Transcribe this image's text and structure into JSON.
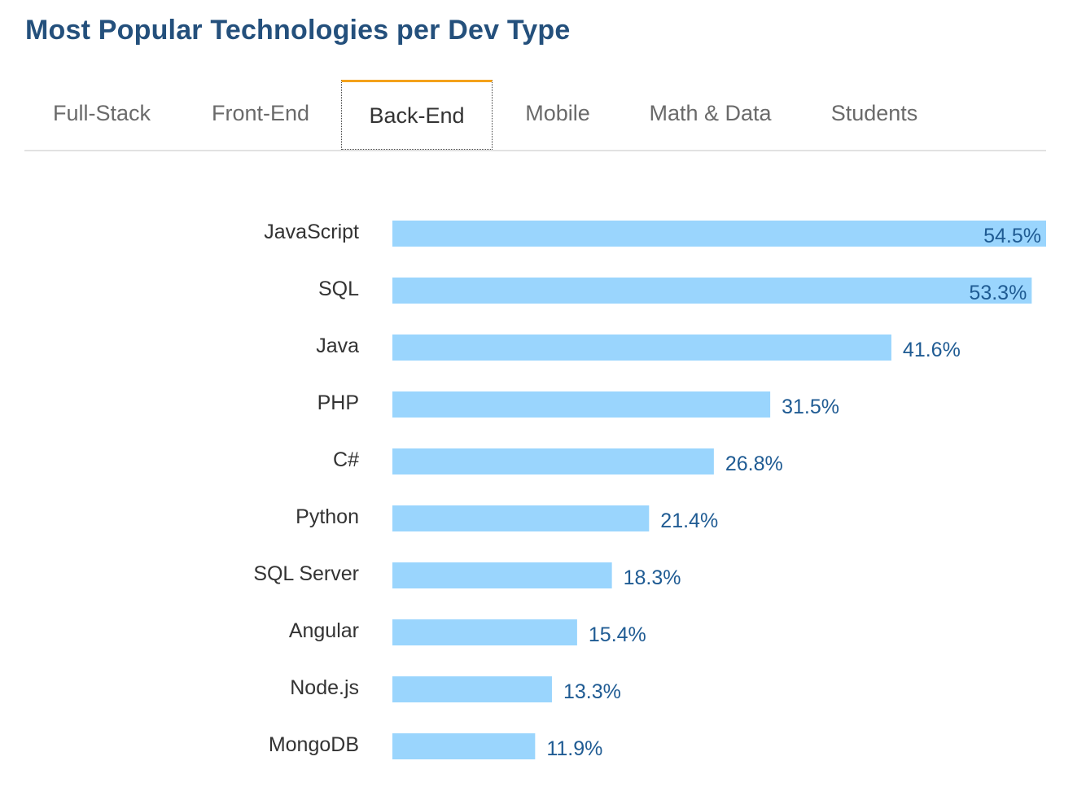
{
  "title": "Most Popular Technologies per Dev Type",
  "tabs": [
    {
      "label": "Full-Stack",
      "active": false
    },
    {
      "label": "Front-End",
      "active": false
    },
    {
      "label": "Back-End",
      "active": true
    },
    {
      "label": "Mobile",
      "active": false
    },
    {
      "label": "Math & Data",
      "active": false
    },
    {
      "label": "Students",
      "active": false
    }
  ],
  "colors": {
    "title": "#24507c",
    "bar": "#9ad5fd",
    "value_label": "#1f5b93",
    "category_label": "#333333",
    "active_tab_accent": "#f4a21a"
  },
  "chart_data": {
    "type": "bar",
    "orientation": "horizontal",
    "categories": [
      "JavaScript",
      "SQL",
      "Java",
      "PHP",
      "C#",
      "Python",
      "SQL Server",
      "Angular",
      "Node.js",
      "MongoDB"
    ],
    "values": [
      54.5,
      53.3,
      41.6,
      31.5,
      26.8,
      21.4,
      18.3,
      15.4,
      13.3,
      11.9
    ],
    "value_labels": [
      "54.5%",
      "53.3%",
      "41.6%",
      "31.5%",
      "26.8%",
      "21.4%",
      "18.3%",
      "15.4%",
      "13.3%",
      "11.9%"
    ],
    "unit": "%",
    "xlim": [
      0,
      54.5
    ],
    "grid": false,
    "legend": "none"
  }
}
